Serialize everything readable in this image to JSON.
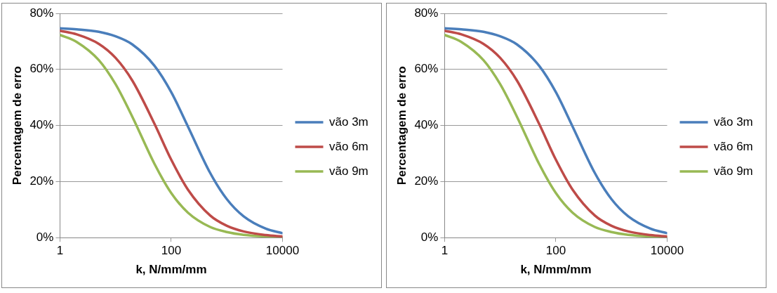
{
  "chart_data": [
    {
      "type": "line",
      "xlabel": "k, N/mm/mm",
      "ylabel": "Percentagem de erro",
      "log": "x",
      "x": [
        1,
        2,
        5,
        10,
        20,
        50,
        100,
        200,
        500,
        1000,
        2000,
        5000,
        10000
      ],
      "xlim": [
        1,
        10000
      ],
      "xticks": [
        1,
        100,
        10000
      ],
      "ylim": [
        0,
        80
      ],
      "yticks": [
        {
          "value": 0,
          "label": "0%"
        },
        {
          "value": 20,
          "label": "20%"
        },
        {
          "value": 40,
          "label": "40%"
        },
        {
          "value": 60,
          "label": "60%"
        },
        {
          "value": 80,
          "label": "80%"
        }
      ],
      "grid": "y",
      "legend": "right",
      "marker": "none",
      "line_style": "solid",
      "series": [
        {
          "name": "vão 3m",
          "color": "#4a7ebb",
          "values": [
            74.7,
            74.3,
            73.4,
            71.8,
            68.9,
            61.3,
            51.9,
            39.6,
            23.1,
            13.7,
            7.6,
            3.2,
            1.6
          ]
        },
        {
          "name": "vão 6m",
          "color": "#be4b48",
          "values": [
            73.8,
            72.5,
            69.1,
            64.1,
            56,
            40.6,
            27.8,
            17.1,
            7.9,
            4.2,
            2.2,
            0.9,
            0.4
          ]
        },
        {
          "name": "vão 9m",
          "color": "#98b954",
          "values": [
            72.3,
            69.8,
            63.3,
            54.7,
            43.1,
            26.3,
            15.9,
            8.9,
            3.8,
            2,
            1,
            0.4,
            0.2
          ]
        }
      ]
    },
    {
      "type": "line",
      "xlabel": "k, N/mm/mm",
      "ylabel": "Percentagem de erro",
      "log": "x",
      "x": [
        1,
        2,
        5,
        10,
        20,
        50,
        100,
        200,
        500,
        1000,
        2000,
        5000,
        10000
      ],
      "xlim": [
        1,
        10000
      ],
      "xticks": [
        1,
        100,
        10000
      ],
      "ylim": [
        0,
        80
      ],
      "yticks": [
        {
          "value": 0,
          "label": "0%"
        },
        {
          "value": 20,
          "label": "20%"
        },
        {
          "value": 40,
          "label": "40%"
        },
        {
          "value": 60,
          "label": "60%"
        },
        {
          "value": 80,
          "label": "80%"
        }
      ],
      "grid": "y",
      "legend": "right",
      "marker": "none",
      "line_style": "solid",
      "series": [
        {
          "name": "vão 3m",
          "color": "#4a7ebb",
          "values": [
            74.7,
            74.3,
            73.4,
            71.8,
            68.9,
            61.3,
            51.9,
            39.6,
            23.1,
            13.7,
            7.6,
            3.2,
            1.6
          ]
        },
        {
          "name": "vão 6m",
          "color": "#be4b48",
          "values": [
            73.8,
            72.5,
            69.1,
            64.1,
            56,
            40.6,
            27.8,
            17.1,
            7.9,
            4.2,
            2.2,
            0.9,
            0.4
          ]
        },
        {
          "name": "vão 9m",
          "color": "#98b954",
          "values": [
            72.3,
            69.8,
            63.3,
            54.7,
            43.1,
            26.3,
            15.9,
            8.9,
            3.8,
            2,
            1,
            0.4,
            0.2
          ]
        }
      ]
    }
  ]
}
